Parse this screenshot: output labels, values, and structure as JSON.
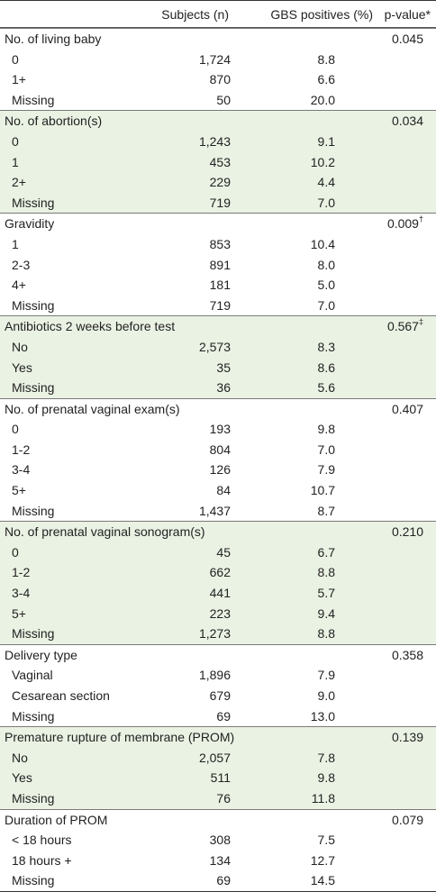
{
  "header": {
    "subjects": "Subjects (n)",
    "gbs": "GBS positives (%)",
    "pvalue": "p-value*"
  },
  "groups": [
    {
      "label": "No. of living baby",
      "p": "0.045",
      "p_mark": "",
      "shade": false,
      "rows": [
        {
          "label": "0",
          "n": "1,724",
          "pct": "8.8"
        },
        {
          "label": "1+",
          "n": "870",
          "pct": "6.6"
        },
        {
          "label": "Missing",
          "n": "50",
          "pct": "20.0"
        }
      ]
    },
    {
      "label": "No. of abortion(s)",
      "p": "0.034",
      "p_mark": "",
      "shade": true,
      "rows": [
        {
          "label": "0",
          "n": "1,243",
          "pct": "9.1"
        },
        {
          "label": "1",
          "n": "453",
          "pct": "10.2"
        },
        {
          "label": "2+",
          "n": "229",
          "pct": "4.4"
        },
        {
          "label": "Missing",
          "n": "719",
          "pct": "7.0"
        }
      ]
    },
    {
      "label": "Gravidity",
      "p": "0.009",
      "p_mark": "†",
      "shade": false,
      "rows": [
        {
          "label": "1",
          "n": "853",
          "pct": "10.4"
        },
        {
          "label": "2-3",
          "n": "891",
          "pct": "8.0"
        },
        {
          "label": "4+",
          "n": "181",
          "pct": "5.0"
        },
        {
          "label": "Missing",
          "n": "719",
          "pct": "7.0"
        }
      ]
    },
    {
      "label": "Antibiotics 2 weeks before test",
      "p": "0.567",
      "p_mark": "‡",
      "shade": true,
      "rows": [
        {
          "label": "No",
          "n": "2,573",
          "pct": "8.3"
        },
        {
          "label": "Yes",
          "n": "35",
          "pct": "8.6"
        },
        {
          "label": "Missing",
          "n": "36",
          "pct": "5.6"
        }
      ]
    },
    {
      "label": "No. of prenatal vaginal exam(s)",
      "p": "0.407",
      "p_mark": "",
      "shade": false,
      "rows": [
        {
          "label": "0",
          "n": "193",
          "pct": "9.8"
        },
        {
          "label": "1-2",
          "n": "804",
          "pct": "7.0"
        },
        {
          "label": "3-4",
          "n": "126",
          "pct": "7.9"
        },
        {
          "label": "5+",
          "n": "84",
          "pct": "10.7"
        },
        {
          "label": "Missing",
          "n": "1,437",
          "pct": "8.7"
        }
      ]
    },
    {
      "label": "No. of prenatal vaginal sonogram(s)",
      "p": "0.210",
      "p_mark": "",
      "shade": true,
      "rows": [
        {
          "label": "0",
          "n": "45",
          "pct": "6.7"
        },
        {
          "label": "1-2",
          "n": "662",
          "pct": "8.8"
        },
        {
          "label": "3-4",
          "n": "441",
          "pct": "5.7"
        },
        {
          "label": "5+",
          "n": "223",
          "pct": "9.4"
        },
        {
          "label": "Missing",
          "n": "1,273",
          "pct": "8.8"
        }
      ]
    },
    {
      "label": "Delivery type",
      "p": "0.358",
      "p_mark": "",
      "shade": false,
      "rows": [
        {
          "label": "Vaginal",
          "n": "1,896",
          "pct": "7.9"
        },
        {
          "label": "Cesarean section",
          "n": "679",
          "pct": "9.0"
        },
        {
          "label": "Missing",
          "n": "69",
          "pct": "13.0"
        }
      ]
    },
    {
      "label": "Premature rupture of membrane (PROM)",
      "p": "0.139",
      "p_mark": "",
      "shade": true,
      "rows": [
        {
          "label": "No",
          "n": "2,057",
          "pct": "7.8"
        },
        {
          "label": "Yes",
          "n": "511",
          "pct": "9.8"
        },
        {
          "label": "Missing",
          "n": "76",
          "pct": "11.8"
        }
      ]
    },
    {
      "label": "Duration of PROM",
      "p": "0.079",
      "p_mark": "",
      "shade": false,
      "rows": [
        {
          "label": "< 18 hours",
          "n": "308",
          "pct": "7.5"
        },
        {
          "label": "18 hours +",
          "n": "134",
          "pct": "12.7"
        },
        {
          "label": "Missing",
          "n": "69",
          "pct": "14.5"
        }
      ]
    }
  ]
}
